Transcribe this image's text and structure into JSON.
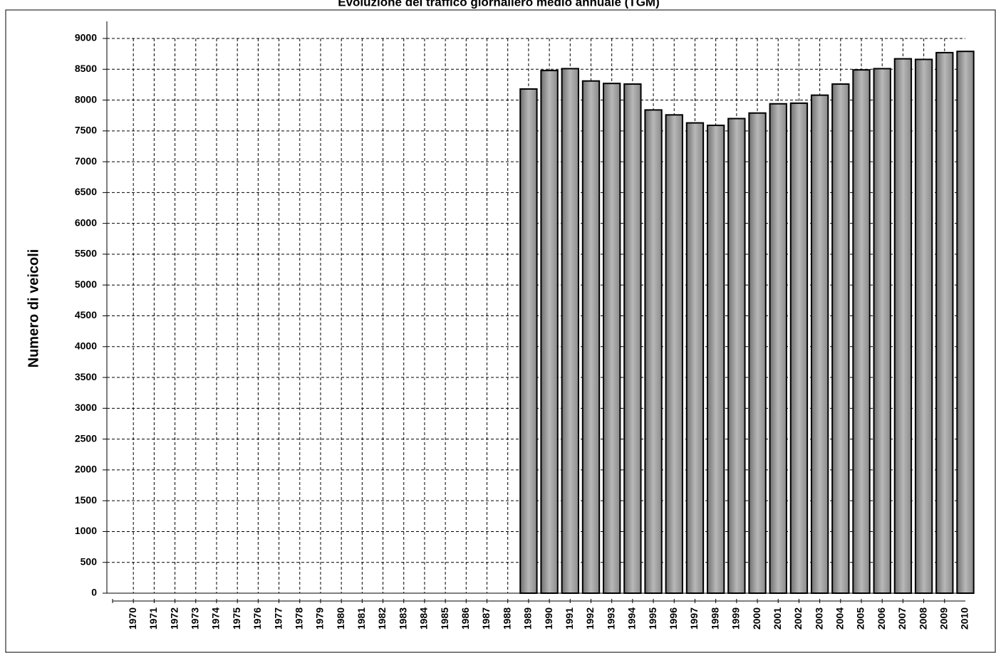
{
  "chart_data": {
    "type": "bar",
    "title": "Evoluzione del traffico giornaliero medio annuale (TGM)",
    "y_label": "Numero di veicoli",
    "categories": [
      "1970",
      "1971",
      "1972",
      "1973",
      "1974",
      "1975",
      "1976",
      "1977",
      "1978",
      "1979",
      "1980",
      "1981",
      "1982",
      "1983",
      "1984",
      "1985",
      "1986",
      "1987",
      "1988",
      "1989",
      "1990",
      "1991",
      "1992",
      "1993",
      "1994",
      "1995",
      "1996",
      "1997",
      "1998",
      "1999",
      "2000",
      "2001",
      "2002",
      "2003",
      "2004",
      "2005",
      "2006",
      "2007",
      "2008",
      "2009",
      "2010"
    ],
    "values": [
      null,
      null,
      null,
      null,
      null,
      null,
      null,
      null,
      null,
      null,
      null,
      null,
      null,
      null,
      null,
      null,
      null,
      null,
      null,
      8180,
      8480,
      8510,
      8310,
      8270,
      8260,
      7840,
      7760,
      7630,
      7590,
      7700,
      7790,
      7940,
      7950,
      8080,
      8260,
      8490,
      8510,
      8670,
      8660,
      8770,
      8790
    ],
    "color": "#a0a0a0",
    "ylim": [
      0,
      9000
    ],
    "yticks": [
      0,
      500,
      1000,
      1500,
      2000,
      2500,
      3000,
      3500,
      4000,
      4500,
      5000,
      5500,
      6000,
      6500,
      7000,
      7500,
      8000,
      8500,
      9000
    ],
    "grid": true
  }
}
